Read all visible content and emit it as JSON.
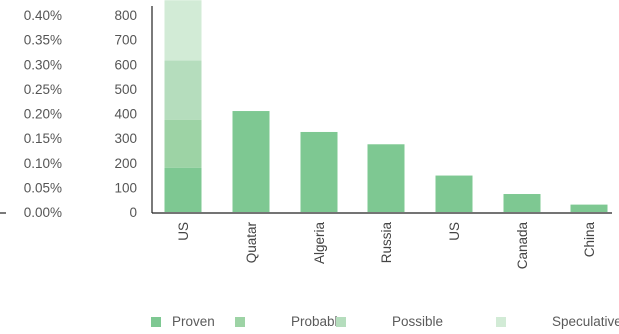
{
  "chart_data": {
    "type": "bar",
    "stacked": true,
    "categories": [
      "US",
      "Quatar",
      "Algeria",
      "Russia",
      "US",
      "Canada",
      "China"
    ],
    "series": [
      {
        "name": "Proven",
        "color": "#7ec892",
        "values": [
          180,
          410,
          325,
          275,
          148,
          73,
          30
        ]
      },
      {
        "name": "Probable",
        "color": "#9dd3a5",
        "values": [
          195,
          0,
          0,
          0,
          0,
          0,
          0
        ]
      },
      {
        "name": "Possible",
        "color": "#b5ddbd",
        "values": [
          240,
          0,
          0,
          0,
          0,
          0,
          0
        ]
      },
      {
        "name": "Speculative",
        "color": "#d2ebd6",
        "values": [
          245,
          0,
          0,
          0,
          0,
          0,
          0
        ]
      }
    ],
    "y_axis_right": {
      "ticks": [
        "0",
        "100",
        "200",
        "300",
        "400",
        "500",
        "600",
        "700",
        "800"
      ],
      "ylim": [
        0,
        800
      ]
    },
    "y_axis_left": {
      "ticks": [
        "0.00%",
        "0.05%",
        "0.10%",
        "0.15%",
        "0.20%",
        "0.25%",
        "0.30%",
        "0.35%",
        "0.40%"
      ],
      "ylim": [
        0,
        0.4
      ]
    },
    "legend_position": "bottom-right",
    "grid": false
  }
}
